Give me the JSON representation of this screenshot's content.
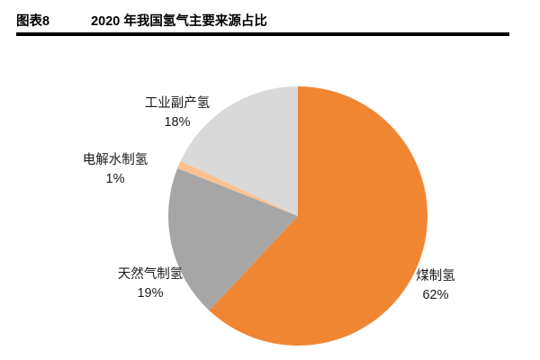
{
  "header": {
    "figure_label": "图表8",
    "title": "2020 年我国氢气主要来源占比"
  },
  "chart_data": {
    "type": "pie",
    "title": "2020 年我国氢气主要来源占比",
    "start_angle_deg": -90,
    "direction": "clockwise",
    "legend_position": "none",
    "slices": [
      {
        "id": "coal",
        "label": "煤制氢",
        "value": 62,
        "pct_text": "62%",
        "color": "#F08632"
      },
      {
        "id": "natural-gas",
        "label": "天然气制氢",
        "value": 19,
        "pct_text": "19%",
        "color": "#A6A6A6"
      },
      {
        "id": "electrolysis",
        "label": "电解水制氢",
        "value": 1,
        "pct_text": "1%",
        "color": "#FAC090"
      },
      {
        "id": "industrial",
        "label": "工业副产氢",
        "value": 18,
        "pct_text": "18%",
        "color": "#D9D9D9"
      }
    ]
  }
}
